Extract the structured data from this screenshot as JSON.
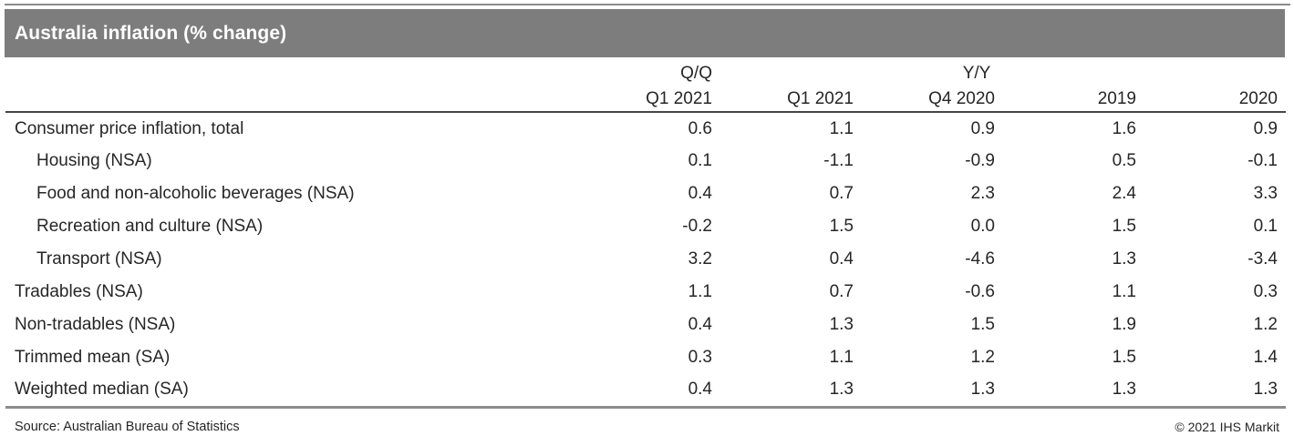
{
  "title": "Australia inflation (% change)",
  "chart_data": {
    "type": "table",
    "title": "Australia inflation (% change)",
    "column_groups": [
      {
        "label": "Q/Q",
        "span": 1
      },
      {
        "label": "Y/Y",
        "span": 4
      }
    ],
    "columns": [
      "Q1 2021",
      "Q1 2021",
      "Q4 2020",
      "2019",
      "2020"
    ],
    "rows": [
      {
        "label": "Consumer price inflation, total",
        "indent": false,
        "values": [
          "0.6",
          "1.1",
          "0.9",
          "1.6",
          "0.9"
        ]
      },
      {
        "label": "Housing (NSA)",
        "indent": true,
        "values": [
          "0.1",
          "-1.1",
          "-0.9",
          "0.5",
          "-0.1"
        ]
      },
      {
        "label": "Food and non-alcoholic beverages (NSA)",
        "indent": true,
        "values": [
          "0.4",
          "0.7",
          "2.3",
          "2.4",
          "3.3"
        ]
      },
      {
        "label": "Recreation and culture (NSA)",
        "indent": true,
        "values": [
          "-0.2",
          "1.5",
          "0.0",
          "1.5",
          "0.1"
        ]
      },
      {
        "label": "Transport (NSA)",
        "indent": true,
        "values": [
          "3.2",
          "0.4",
          "-4.6",
          "1.3",
          "-3.4"
        ]
      },
      {
        "label": "Tradables (NSA)",
        "indent": false,
        "values": [
          "1.1",
          "0.7",
          "-0.6",
          "1.1",
          "0.3"
        ]
      },
      {
        "label": "Non-tradables (NSA)",
        "indent": false,
        "values": [
          "0.4",
          "1.3",
          "1.5",
          "1.9",
          "1.2"
        ]
      },
      {
        "label": "Trimmed mean (SA)",
        "indent": false,
        "values": [
          "0.3",
          "1.1",
          "1.2",
          "1.5",
          "1.4"
        ]
      },
      {
        "label": "Weighted median (SA)",
        "indent": false,
        "values": [
          "0.4",
          "1.3",
          "1.3",
          "1.3",
          "1.3"
        ]
      }
    ]
  },
  "footer": {
    "source": "Source: Australian Bureau of Statistics",
    "copyright": "© 2021 IHS Markit"
  },
  "colors": {
    "title_bar": "#7d7d7d",
    "rule_gray": "#8c8c8c",
    "rule_dark": "#454545",
    "text": "#262626",
    "title_text": "#ffffff"
  }
}
